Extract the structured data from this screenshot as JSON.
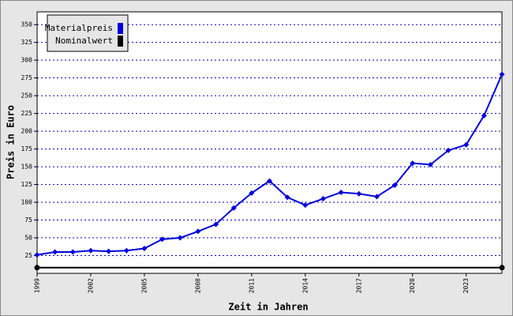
{
  "chart_data": {
    "type": "line",
    "x_label": "Zeit in Jahren",
    "y_label": "Preis in Euro",
    "xlim": [
      1999,
      2025
    ],
    "xticks": [
      1999,
      2002,
      2005,
      2008,
      2011,
      2014,
      2017,
      2020,
      2023
    ],
    "ylim": [
      0,
      368
    ],
    "yticks": [
      25,
      50,
      75,
      100,
      125,
      150,
      175,
      200,
      225,
      250,
      275,
      300,
      325,
      350
    ],
    "grid": true,
    "legend": "top-left",
    "series": [
      {
        "name": "Materialpreis",
        "color": "#0000dd",
        "x": [
          1999,
          2000,
          2001,
          2002,
          2003,
          2004,
          2005,
          2006,
          2007,
          2008,
          2009,
          2010,
          2011,
          2012,
          2013,
          2014,
          2015,
          2016,
          2017,
          2018,
          2019,
          2020,
          2021,
          2022,
          2023,
          2024,
          2025
        ],
        "values": [
          26,
          30,
          30,
          32,
          31,
          32,
          35,
          48,
          50,
          59,
          69,
          92,
          113,
          130,
          107,
          96,
          105,
          114,
          112,
          108,
          124,
          155,
          153,
          173,
          181,
          222,
          280
        ]
      },
      {
        "name": "Nominalwert",
        "color": "#000000",
        "x": [
          1999,
          2025
        ],
        "values": [
          8,
          8
        ]
      }
    ]
  }
}
